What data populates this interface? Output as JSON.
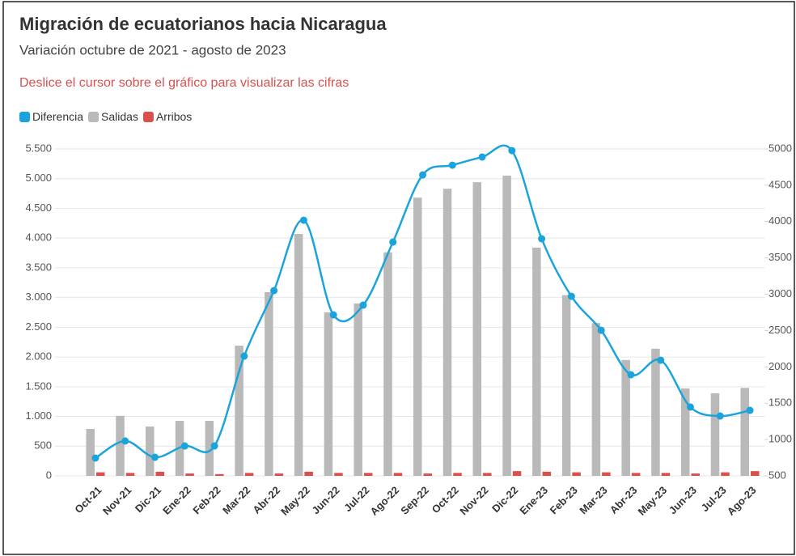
{
  "chart_data": {
    "type": "bar_line",
    "title": "Migración de ecuatorianos hacia Nicaragua",
    "subtitle": "Variación octubre de 2021 - agosto de 2023",
    "annotation": "Deslice el cursor sobre el gráfico para visualizar las cifras",
    "categories": [
      "Oct-21",
      "Nov-21",
      "Dic-21",
      "Ene-22",
      "Feb-22",
      "Mar-22",
      "Abr-22",
      "May-22",
      "Jun-22",
      "Jul-22",
      "Ago-22",
      "Sep-22",
      "Oct-22",
      "Nov-22",
      "Dic-22",
      "Ene-23",
      "Feb-23",
      "Mar-23",
      "Abr-23",
      "May-23",
      "Jun-23",
      "Jul-23",
      "Ago-23"
    ],
    "series": [
      {
        "name": "Diferencia",
        "color": "#1ba3dc",
        "axis": "y2",
        "kind": "line",
        "values": [
          745,
          980,
          756,
          912,
          912,
          2148,
          3050,
          4019,
          2716,
          2850,
          3718,
          4642,
          4776,
          4888,
          4977,
          3763,
          2972,
          2504,
          1892,
          2092,
          1447,
          1324,
          1402
        ]
      },
      {
        "name": "Salidas",
        "color": "#b9b9b9",
        "kind": "bar",
        "values": [
          790,
          1010,
          830,
          925,
          925,
          2190,
          3090,
          4070,
          2750,
          2900,
          3760,
          4680,
          4830,
          4940,
          5050,
          3840,
          3040,
          2570,
          1950,
          2140,
          1470,
          1390,
          1480
        ]
      },
      {
        "name": "Arribos",
        "color": "#d9504d",
        "kind": "bar",
        "values": [
          60,
          50,
          70,
          40,
          30,
          50,
          40,
          70,
          50,
          50,
          50,
          40,
          50,
          50,
          80,
          70,
          60,
          60,
          50,
          50,
          40,
          60,
          80
        ]
      }
    ],
    "ylim": [
      0,
      5500
    ],
    "yticks": [
      0,
      500,
      {
        "value": 1000,
        "label": "1.000"
      },
      {
        "value": 1500,
        "label": "1.500"
      },
      {
        "value": 2000,
        "label": "2.000"
      },
      {
        "value": 2500,
        "label": "2.500"
      },
      {
        "value": 3000,
        "label": "3.000"
      },
      {
        "value": 3500,
        "label": "3.500"
      },
      {
        "value": 4000,
        "label": "4.000"
      },
      {
        "value": 4500,
        "label": "4.500"
      },
      {
        "value": 5000,
        "label": "5.000"
      },
      {
        "value": 5500,
        "label": "5.500"
      }
    ],
    "y2lim": [
      500,
      5000
    ],
    "y2ticks": [
      500,
      1000,
      1500,
      2000,
      2500,
      3000,
      3500,
      4000,
      4500,
      5000
    ],
    "grid": true,
    "legend": "top-left"
  }
}
